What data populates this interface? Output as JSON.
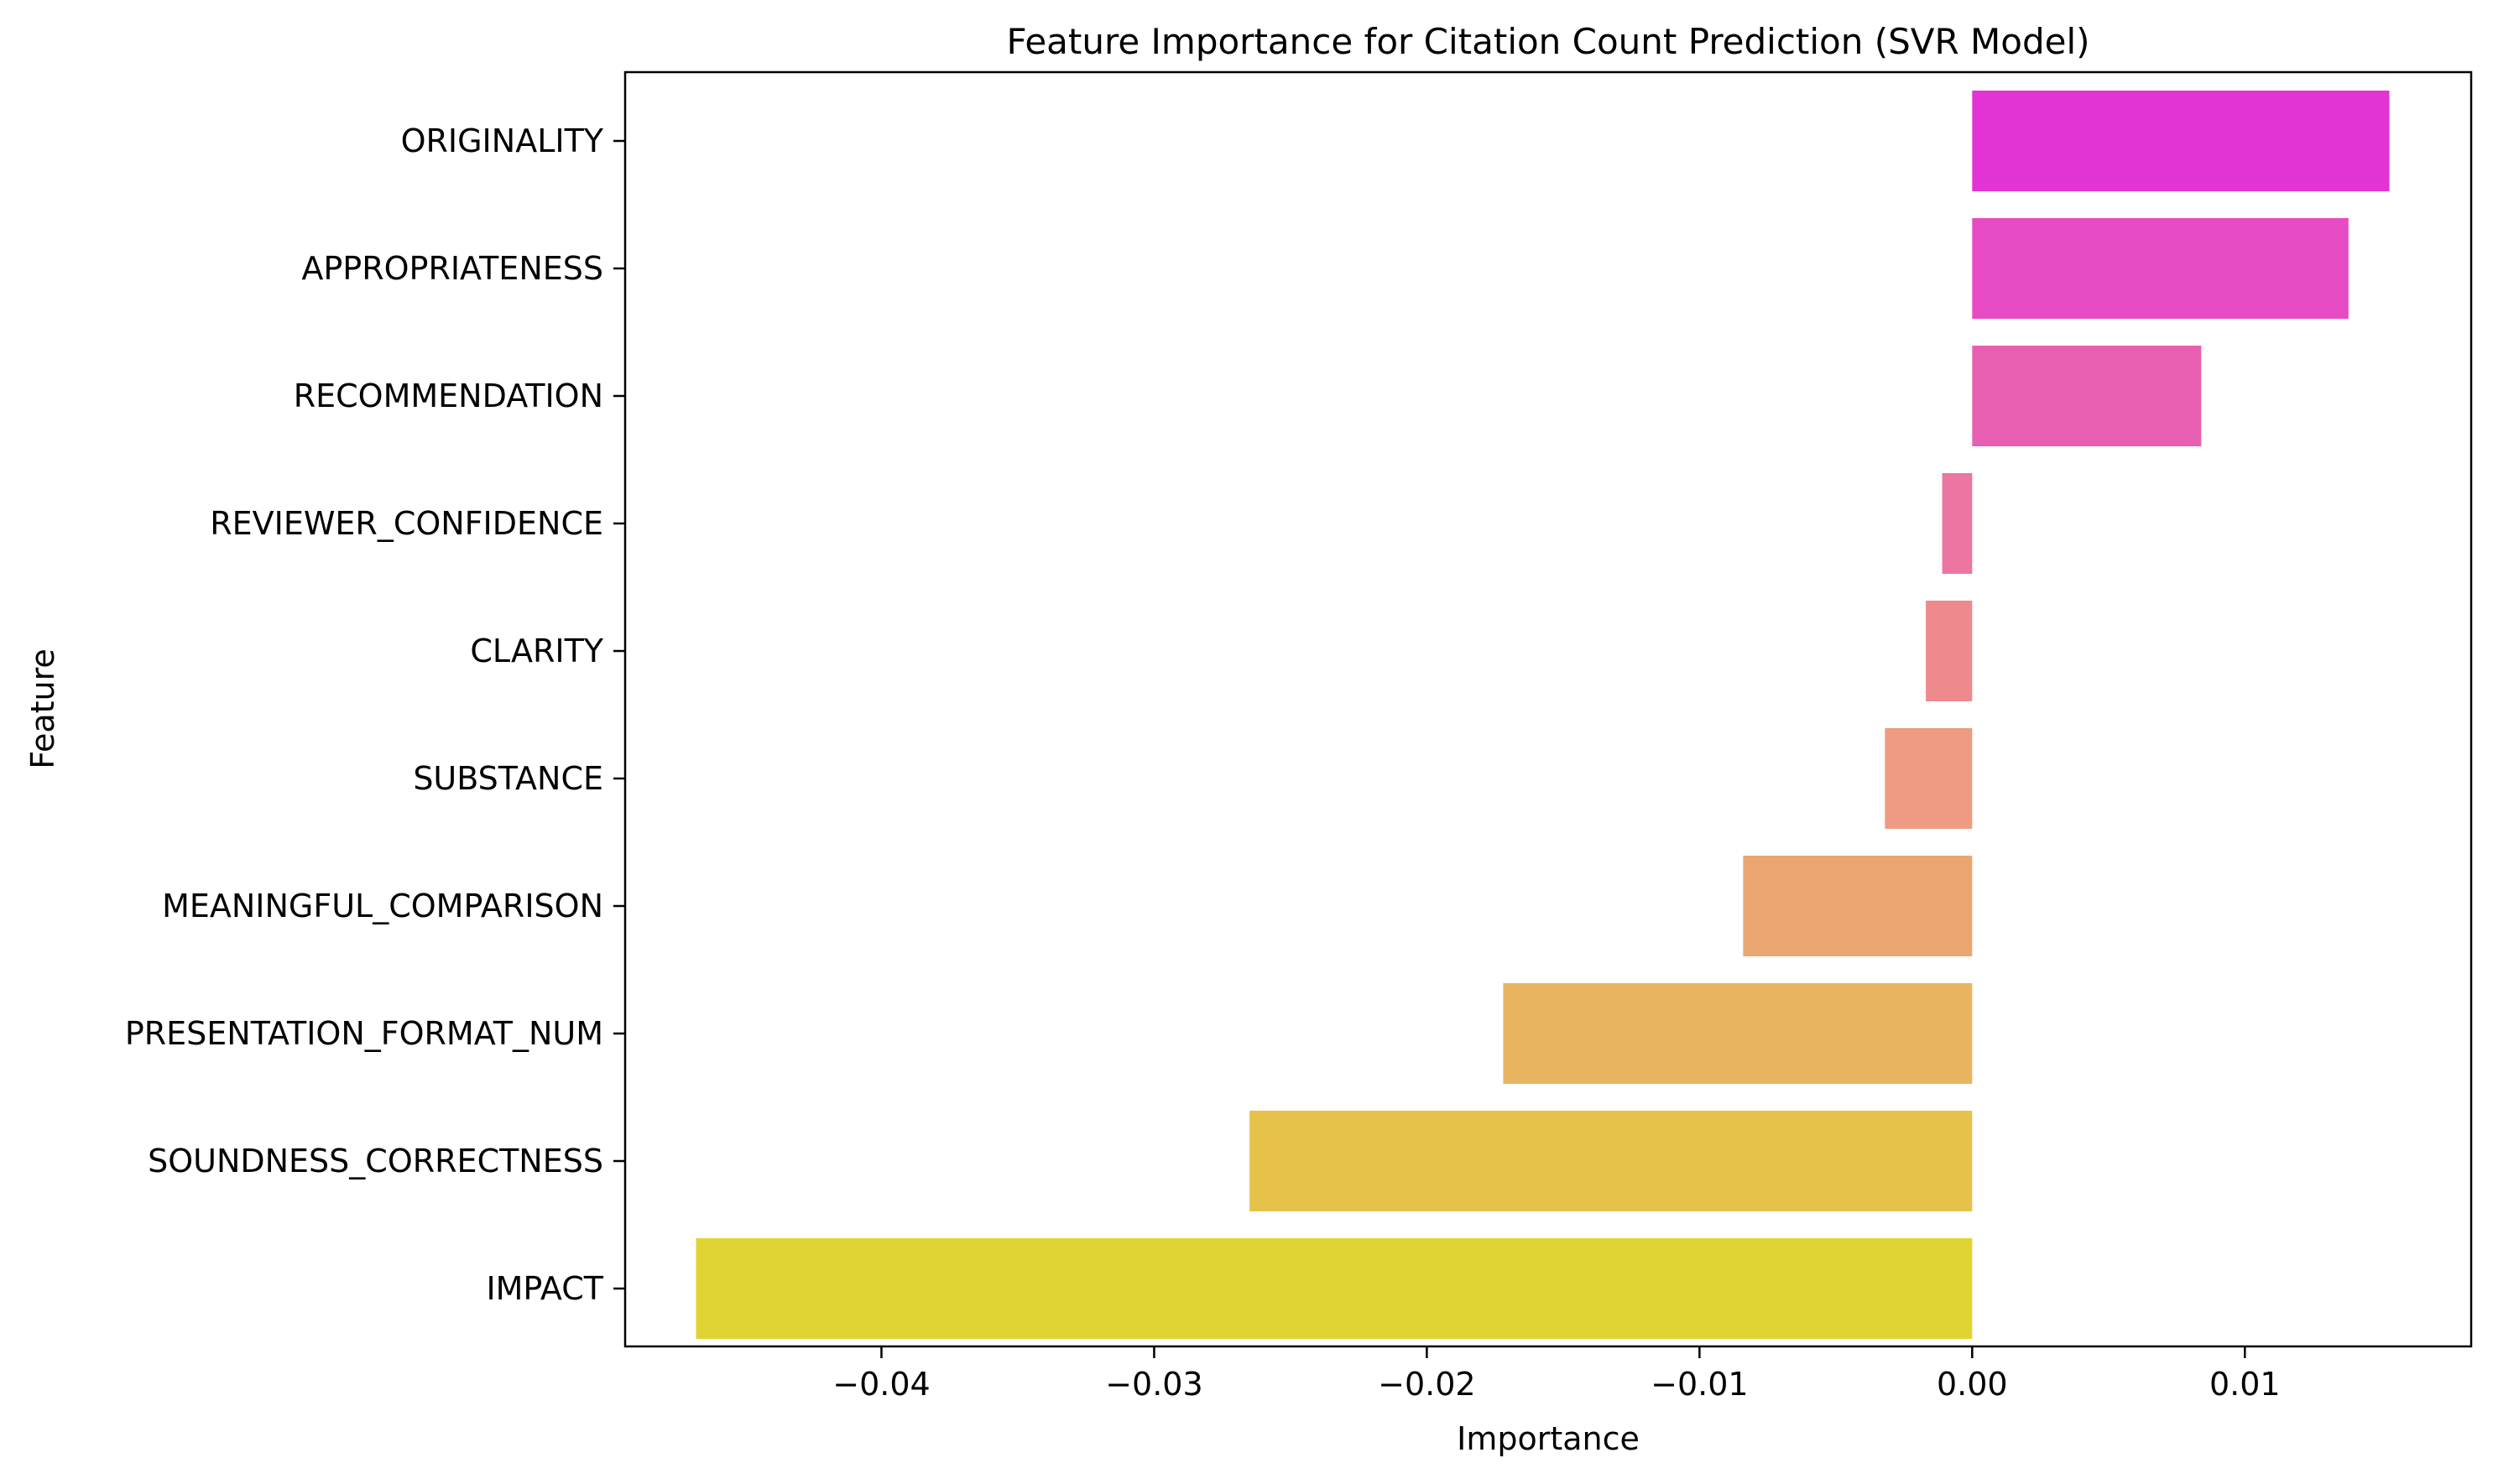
{
  "chart_data": {
    "type": "bar",
    "orientation": "horizontal",
    "title": "Feature Importance for Citation Count Prediction (SVR Model)",
    "xlabel": "Importance",
    "ylabel": "Feature",
    "xlim": [
      -0.0494,
      0.0183
    ],
    "xticks": [
      -0.04,
      -0.03,
      -0.02,
      -0.01,
      0.0,
      0.01
    ],
    "xtick_labels": [
      "−0.04",
      "−0.03",
      "−0.02",
      "−0.01",
      "0.00",
      "0.01"
    ],
    "grid": false,
    "legend": "none",
    "categories": [
      "ORIGINALITY",
      "APPROPRIATENESS",
      "RECOMMENDATION",
      "REVIEWER_CONFIDENCE",
      "CLARITY",
      "SUBSTANCE",
      "MEANINGFUL_COMPARISON",
      "PRESENTATION_FORMAT_NUM",
      "SOUNDNESS_CORRECTNESS",
      "IMPACT"
    ],
    "values": [
      0.0153,
      0.0138,
      0.0084,
      -0.0011,
      -0.0017,
      -0.0032,
      -0.0084,
      -0.0172,
      -0.0265,
      -0.0468
    ],
    "colors": [
      "#e233d5",
      "#e64bc4",
      "#e85fb1",
      "#ec75a1",
      "#ee8a8e",
      "#ef9a82",
      "#eba66f",
      "#e9b45f",
      "#e6c24b",
      "#e0d432"
    ]
  }
}
